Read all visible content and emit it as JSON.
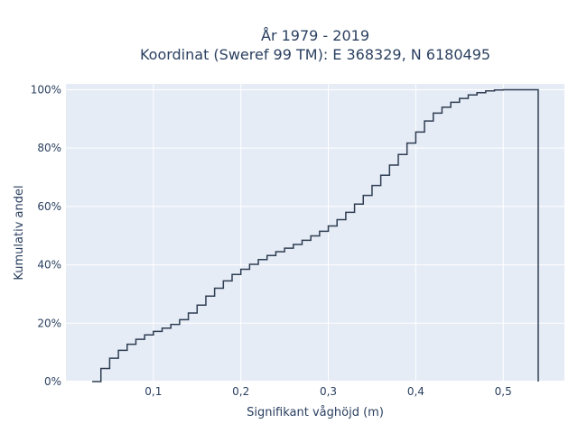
{
  "chart_data": {
    "type": "line",
    "line_shape": "step",
    "title_line1": "År 1979 - 2019",
    "title_line2": "Koordinat (Sweref 99 TM): E 368329, N 6180495",
    "xlabel": "Signifikant våghöjd (m)",
    "ylabel": "Kumulativ andel",
    "xlim": [
      0.0,
      0.57
    ],
    "ylim": [
      0,
      1.02
    ],
    "x_ticks": [
      0.1,
      0.2,
      0.3,
      0.4,
      0.5
    ],
    "x_tick_labels": [
      "0,1",
      "0,2",
      "0,3",
      "0,4",
      "0,5"
    ],
    "y_ticks": [
      0,
      0.2,
      0.4,
      0.6,
      0.8,
      1.0
    ],
    "y_tick_labels": [
      "0%",
      "20%",
      "40%",
      "60%",
      "80%",
      "100%"
    ],
    "grid": true,
    "colors": {
      "plot_background": "#e5ecf6",
      "grid": "#ffffff",
      "line": "#2e3d52"
    },
    "x": [
      0.03,
      0.04,
      0.05,
      0.06,
      0.07,
      0.08,
      0.09,
      0.1,
      0.11,
      0.12,
      0.13,
      0.14,
      0.15,
      0.16,
      0.17,
      0.18,
      0.19,
      0.2,
      0.21,
      0.22,
      0.23,
      0.24,
      0.25,
      0.26,
      0.27,
      0.28,
      0.29,
      0.3,
      0.31,
      0.32,
      0.33,
      0.34,
      0.35,
      0.36,
      0.37,
      0.38,
      0.39,
      0.4,
      0.41,
      0.42,
      0.43,
      0.44,
      0.45,
      0.46,
      0.47,
      0.48,
      0.49,
      0.5,
      0.51,
      0.52,
      0.53,
      0.54
    ],
    "y": [
      0.0,
      0.045,
      0.08,
      0.107,
      0.128,
      0.145,
      0.16,
      0.172,
      0.183,
      0.196,
      0.212,
      0.235,
      0.262,
      0.293,
      0.32,
      0.345,
      0.367,
      0.385,
      0.402,
      0.418,
      0.432,
      0.445,
      0.457,
      0.47,
      0.484,
      0.499,
      0.515,
      0.533,
      0.555,
      0.58,
      0.608,
      0.638,
      0.672,
      0.707,
      0.742,
      0.778,
      0.817,
      0.855,
      0.893,
      0.92,
      0.94,
      0.957,
      0.97,
      0.982,
      0.99,
      0.996,
      0.999,
      1.0,
      1.0,
      1.0,
      1.0,
      0.0
    ]
  }
}
